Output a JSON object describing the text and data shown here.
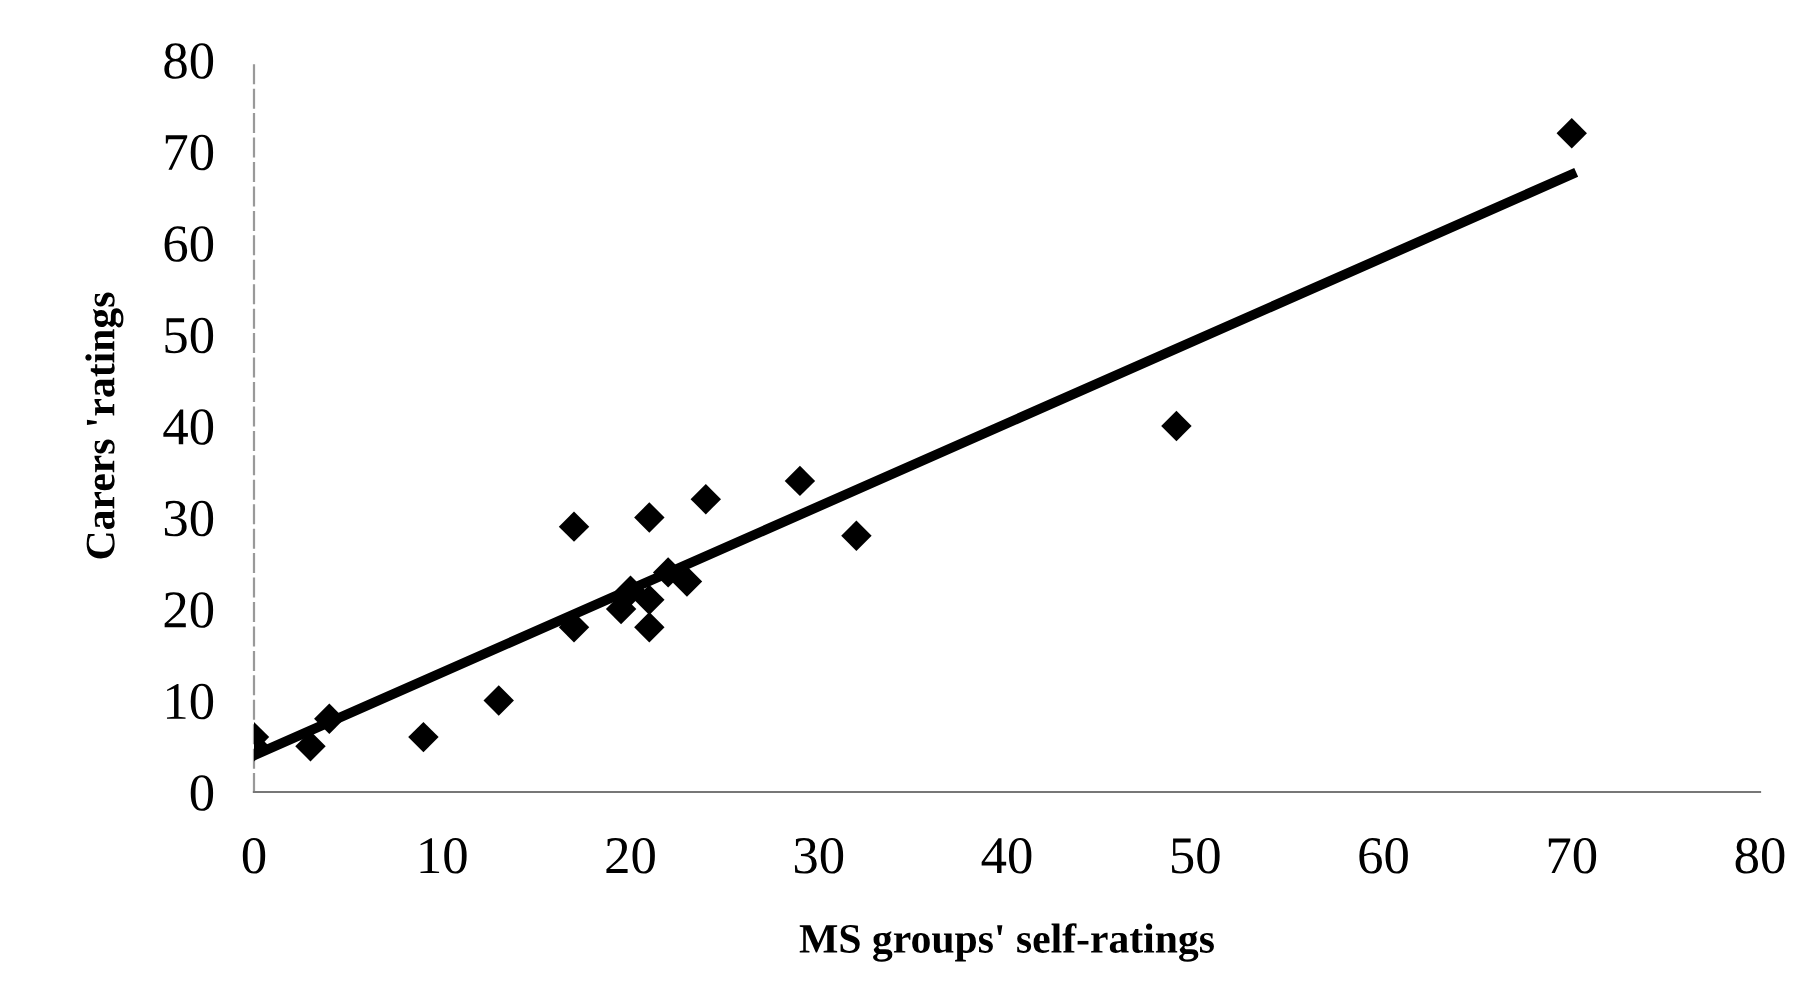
{
  "chart_data": {
    "type": "scatter",
    "xlabel": "MS groups' self-ratings",
    "ylabel": "Carers 'ratings",
    "series": [
      {
        "color": "#000000",
        "marker": "diamond",
        "x": [
          0,
          0,
          3,
          4,
          9,
          13,
          17,
          17,
          19.5,
          20,
          21,
          21,
          21,
          22,
          23,
          24,
          29,
          32,
          49,
          70
        ],
        "values": [
          6,
          5,
          5,
          8,
          6,
          10,
          29,
          18,
          20,
          22,
          30,
          21,
          18,
          24,
          23,
          32,
          34,
          28,
          40,
          72
        ]
      },
      {
        "type": "line",
        "color": "#000000",
        "marker": "none",
        "x": [
          0,
          70
        ],
        "values": [
          4,
          67.5
        ]
      }
    ],
    "xlim": [
      0,
      80
    ],
    "ylim": [
      0,
      80
    ],
    "xticks": [
      0,
      10,
      20,
      30,
      40,
      50,
      60,
      70,
      80
    ],
    "yticks": [
      0,
      10,
      20,
      30,
      40,
      50,
      60,
      70,
      80
    ],
    "grid": false,
    "legend": false
  }
}
